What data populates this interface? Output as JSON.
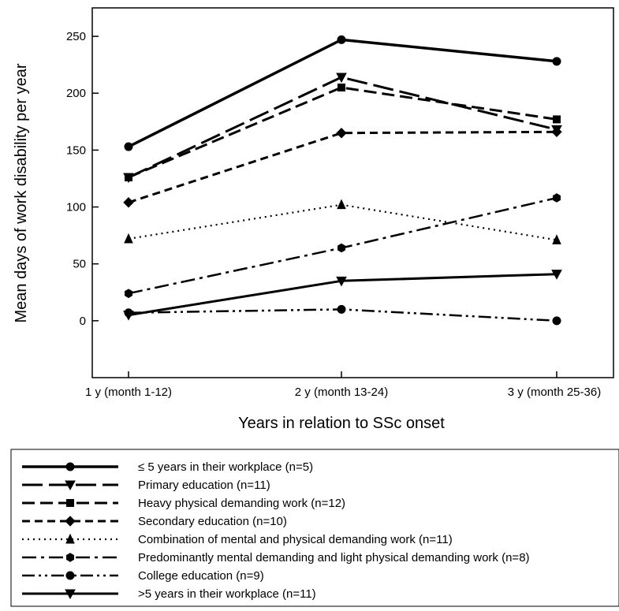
{
  "chart_data": {
    "type": "line",
    "title": "",
    "xlabel": "Years in relation to SSc onset",
    "ylabel": "Mean days of work disability per year",
    "categories": [
      "1 y (month 1-12)",
      "2 y (month 13-24)",
      "3 y (month 25-36)"
    ],
    "ylim": [
      -50,
      275
    ],
    "yticks": [
      0,
      50,
      100,
      150,
      200,
      250
    ],
    "grid": false,
    "legend_placement": "bottom",
    "series": [
      {
        "name": "≤ 5 years in their workplace (n=5)",
        "values": [
          153,
          247,
          228
        ],
        "line_style": "solid-thick",
        "marker": "circle"
      },
      {
        "name": "Primary education (n=11)",
        "values": [
          126,
          214,
          168
        ],
        "line_style": "long-dash",
        "marker": "triangle-down"
      },
      {
        "name": "Heavy physical demanding work (n=12)",
        "values": [
          126,
          205,
          177
        ],
        "line_style": "dash",
        "marker": "square"
      },
      {
        "name": "Secondary education (n=10)",
        "values": [
          104,
          165,
          166
        ],
        "line_style": "short-dash",
        "marker": "diamond"
      },
      {
        "name": "Combination of mental and physical demanding work (n=11)",
        "values": [
          72,
          102,
          71
        ],
        "line_style": "dot",
        "marker": "triangle-up"
      },
      {
        "name": "Predominantly mental demanding and light physical demanding work (n=8)",
        "values": [
          24,
          64,
          108
        ],
        "line_style": "dash-dot",
        "marker": "hexagon"
      },
      {
        "name": "College education (n=9)",
        "values": [
          7,
          10,
          0
        ],
        "line_style": "dash-dot-dot",
        "marker": "circle"
      },
      {
        "name": ">5 years in their workplace (n=11)",
        "values": [
          5,
          35,
          41
        ],
        "line_style": "solid",
        "marker": "triangle-down"
      }
    ]
  }
}
